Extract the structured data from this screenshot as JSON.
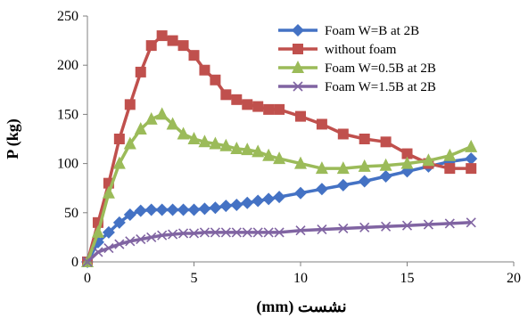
{
  "chart_data": {
    "type": "line",
    "title": "",
    "xlabel": "نشست (mm)",
    "ylabel": "P  (kg)",
    "xlim": [
      0,
      20
    ],
    "ylim": [
      0,
      250
    ],
    "x_ticks": [
      "0",
      "5",
      "10",
      "15",
      "20"
    ],
    "y_ticks": [
      "0",
      "50",
      "100",
      "150",
      "200",
      "250"
    ],
    "grid": false,
    "legend_position": "top-right",
    "series": [
      {
        "name": "Foam W=B at 2B",
        "color": "#4472C4",
        "marker": "diamond",
        "points": [
          [
            0,
            0
          ],
          [
            0.5,
            20
          ],
          [
            1,
            30
          ],
          [
            1.5,
            40
          ],
          [
            2,
            48
          ],
          [
            2.5,
            52
          ],
          [
            3,
            53
          ],
          [
            3.5,
            53
          ],
          [
            4,
            53
          ],
          [
            4.5,
            53
          ],
          [
            5,
            53
          ],
          [
            5.5,
            54
          ],
          [
            6,
            55
          ],
          [
            6.5,
            57
          ],
          [
            7,
            58
          ],
          [
            7.5,
            60
          ],
          [
            8,
            62
          ],
          [
            8.5,
            64
          ],
          [
            9,
            66
          ],
          [
            10,
            70
          ],
          [
            11,
            74
          ],
          [
            12,
            78
          ],
          [
            13,
            82
          ],
          [
            14,
            87
          ],
          [
            15,
            92
          ],
          [
            16,
            97
          ],
          [
            17,
            102
          ],
          [
            18,
            105
          ]
        ]
      },
      {
        "name": "without foam",
        "color": "#C0504D",
        "marker": "square",
        "points": [
          [
            0,
            0
          ],
          [
            0.5,
            40
          ],
          [
            1,
            80
          ],
          [
            1.5,
            125
          ],
          [
            2,
            160
          ],
          [
            2.5,
            193
          ],
          [
            3,
            220
          ],
          [
            3.5,
            230
          ],
          [
            4,
            225
          ],
          [
            4.5,
            220
          ],
          [
            5,
            210
          ],
          [
            5.5,
            195
          ],
          [
            6,
            185
          ],
          [
            6.5,
            170
          ],
          [
            7,
            165
          ],
          [
            7.5,
            160
          ],
          [
            8,
            158
          ],
          [
            8.5,
            155
          ],
          [
            9,
            155
          ],
          [
            10,
            148
          ],
          [
            11,
            140
          ],
          [
            12,
            130
          ],
          [
            13,
            125
          ],
          [
            14,
            122
          ],
          [
            15,
            110
          ],
          [
            16,
            100
          ],
          [
            17,
            95
          ],
          [
            18,
            95
          ]
        ]
      },
      {
        "name": "Foam W=0.5B at 2B",
        "color": "#9BBB59",
        "marker": "triangle",
        "points": [
          [
            0,
            0
          ],
          [
            0.5,
            30
          ],
          [
            1,
            70
          ],
          [
            1.5,
            100
          ],
          [
            2,
            120
          ],
          [
            2.5,
            135
          ],
          [
            3,
            145
          ],
          [
            3.5,
            150
          ],
          [
            4,
            140
          ],
          [
            4.5,
            130
          ],
          [
            5,
            125
          ],
          [
            5.5,
            122
          ],
          [
            6,
            120
          ],
          [
            6.5,
            118
          ],
          [
            7,
            115
          ],
          [
            7.5,
            114
          ],
          [
            8,
            112
          ],
          [
            8.5,
            108
          ],
          [
            9,
            105
          ],
          [
            10,
            100
          ],
          [
            11,
            95
          ],
          [
            12,
            95
          ],
          [
            13,
            97
          ],
          [
            14,
            98
          ],
          [
            15,
            100
          ],
          [
            16,
            103
          ],
          [
            17,
            108
          ],
          [
            18,
            117
          ]
        ]
      },
      {
        "name": "Foam W=1.5B at 2B",
        "color": "#8064A2",
        "marker": "x",
        "points": [
          [
            0,
            0
          ],
          [
            0.5,
            10
          ],
          [
            1,
            14
          ],
          [
            1.5,
            18
          ],
          [
            2,
            21
          ],
          [
            2.5,
            23
          ],
          [
            3,
            25
          ],
          [
            3.5,
            27
          ],
          [
            4,
            28
          ],
          [
            4.5,
            29
          ],
          [
            5,
            29
          ],
          [
            5.5,
            30
          ],
          [
            6,
            30
          ],
          [
            6.5,
            30
          ],
          [
            7,
            30
          ],
          [
            7.5,
            30
          ],
          [
            8,
            30
          ],
          [
            8.5,
            30
          ],
          [
            9,
            30
          ],
          [
            10,
            32
          ],
          [
            11,
            33
          ],
          [
            12,
            34
          ],
          [
            13,
            35
          ],
          [
            14,
            36
          ],
          [
            15,
            37
          ],
          [
            16,
            38
          ],
          [
            17,
            39
          ],
          [
            18,
            40
          ]
        ]
      }
    ]
  }
}
